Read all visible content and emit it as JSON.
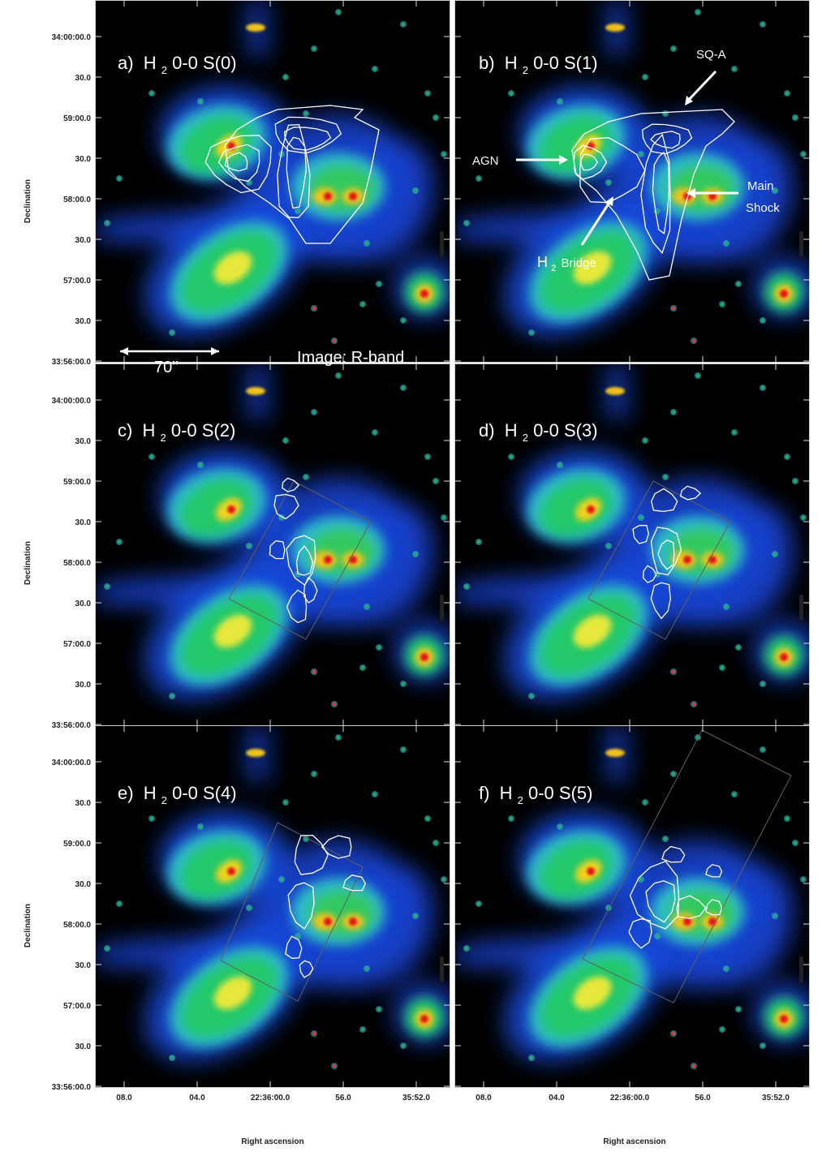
{
  "colors": {
    "sky": "#000000",
    "halo": "#1e55e6",
    "galaxy": "#22c86a",
    "core": "#f2d21a",
    "nucleus": "#e41414",
    "contour": "#ffffff"
  },
  "dec_ticks": [
    "34:00:00.0",
    "30.0",
    "59:00.0",
    "30.0",
    "58:00.0",
    "30.0",
    "57:00.0",
    "30.0",
    "33:56:00.0"
  ],
  "ra_ticks": [
    "08.0",
    "04.0",
    "22:36:00.0",
    "56.0",
    "35:52.0"
  ],
  "axes": {
    "ylabel": "Declination",
    "xlabel": "Right ascension"
  },
  "panels": [
    {
      "tag": "a)",
      "species": "H",
      "sub": "2",
      "line": " 0-0 S(0)"
    },
    {
      "tag": "b)",
      "species": "H",
      "sub": "2",
      "line": " 0-0 S(1)"
    },
    {
      "tag": "c)",
      "species": "H",
      "sub": "2",
      "line": " 0-0 S(2)"
    },
    {
      "tag": "d)",
      "species": "H",
      "sub": "2",
      "line": " 0-0 S(3)"
    },
    {
      "tag": "e)",
      "species": "H",
      "sub": "2",
      "line": " 0-0 S(4)"
    },
    {
      "tag": "f)",
      "species": "H",
      "sub": "2",
      "line": " 0-0 S(5)"
    }
  ],
  "annotations": {
    "scale": "70''",
    "image_label": "Image: R-band",
    "sqa": "SQ-A",
    "agn": "AGN",
    "main": "Main",
    "shock": "Shock",
    "bridge_h": "H",
    "bridge_sub": "2",
    "bridge_word": "Bridge"
  }
}
